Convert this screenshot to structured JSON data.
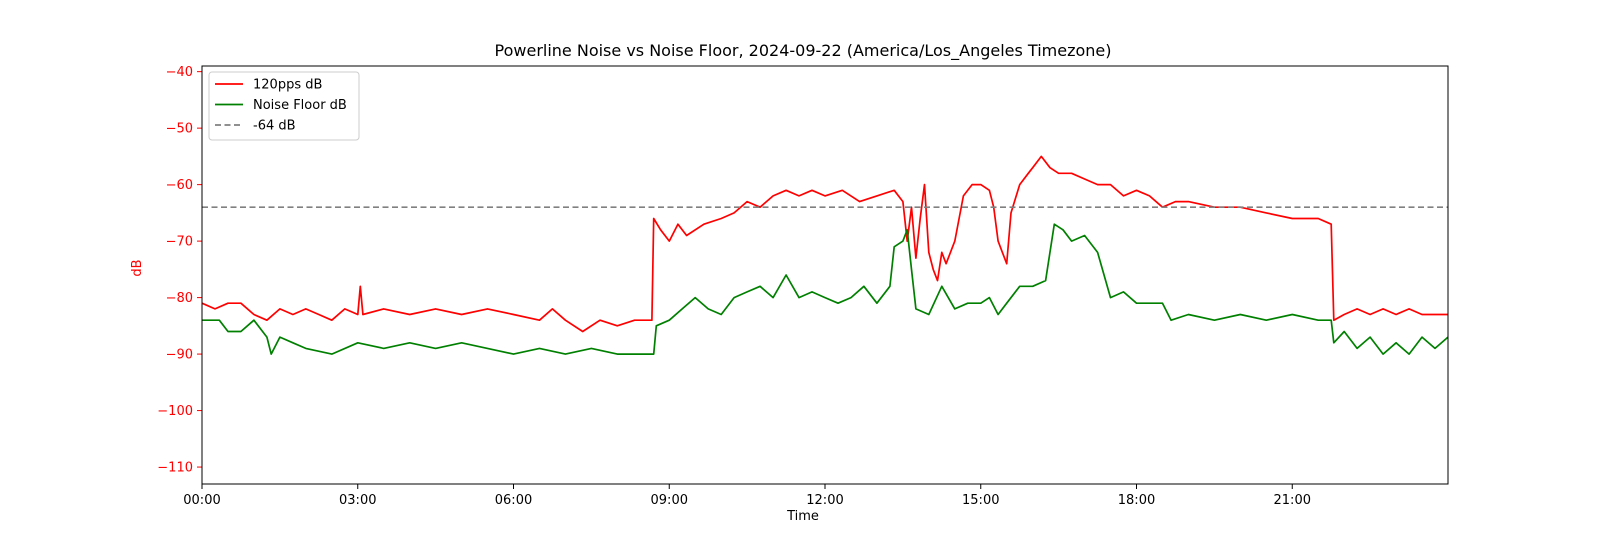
{
  "chart_data": {
    "type": "line",
    "title": "Powerline Noise vs Noise Floor, 2024-09-22 (America/Los_Angeles Timezone)",
    "xlabel": "Time",
    "ylabel": "dB",
    "xlim": [
      "00:00",
      "24:00"
    ],
    "ylim": [
      -113,
      -39
    ],
    "x_ticks": [
      "00:00",
      "03:00",
      "06:00",
      "09:00",
      "12:00",
      "15:00",
      "18:00",
      "21:00"
    ],
    "y_ticks": [
      -40,
      -50,
      -60,
      -70,
      -80,
      -90,
      -100,
      -110
    ],
    "grid": false,
    "legend_position": "upper-left",
    "series": [
      {
        "name": "120pps dB",
        "color": "#ff0000",
        "style": "solid",
        "points": [
          [
            "00:00",
            -81
          ],
          [
            "00:15",
            -82
          ],
          [
            "00:30",
            -81
          ],
          [
            "00:45",
            -81
          ],
          [
            "01:00",
            -83
          ],
          [
            "01:15",
            -84
          ],
          [
            "01:30",
            -82
          ],
          [
            "01:45",
            -83
          ],
          [
            "02:00",
            -82
          ],
          [
            "02:15",
            -83
          ],
          [
            "02:30",
            -84
          ],
          [
            "02:45",
            -82
          ],
          [
            "03:00",
            -83
          ],
          [
            "03:03",
            -78
          ],
          [
            "03:06",
            -83
          ],
          [
            "03:30",
            -82
          ],
          [
            "04:00",
            -83
          ],
          [
            "04:30",
            -82
          ],
          [
            "05:00",
            -83
          ],
          [
            "05:30",
            -82
          ],
          [
            "06:00",
            -83
          ],
          [
            "06:30",
            -84
          ],
          [
            "06:45",
            -82
          ],
          [
            "07:00",
            -84
          ],
          [
            "07:20",
            -86
          ],
          [
            "07:40",
            -84
          ],
          [
            "08:00",
            -85
          ],
          [
            "08:20",
            -84
          ],
          [
            "08:40",
            -84
          ],
          [
            "08:42",
            -66
          ],
          [
            "08:50",
            -68
          ],
          [
            "09:00",
            -70
          ],
          [
            "09:10",
            -67
          ],
          [
            "09:20",
            -69
          ],
          [
            "09:40",
            -67
          ],
          [
            "10:00",
            -66
          ],
          [
            "10:15",
            -65
          ],
          [
            "10:30",
            -63
          ],
          [
            "10:45",
            -64
          ],
          [
            "11:00",
            -62
          ],
          [
            "11:15",
            -61
          ],
          [
            "11:30",
            -62
          ],
          [
            "11:45",
            -61
          ],
          [
            "12:00",
            -62
          ],
          [
            "12:20",
            -61
          ],
          [
            "12:40",
            -63
          ],
          [
            "13:00",
            -62
          ],
          [
            "13:20",
            -61
          ],
          [
            "13:30",
            -63
          ],
          [
            "13:35",
            -70
          ],
          [
            "13:40",
            -64
          ],
          [
            "13:45",
            -73
          ],
          [
            "13:50",
            -66
          ],
          [
            "13:55",
            -60
          ],
          [
            "14:00",
            -72
          ],
          [
            "14:05",
            -75
          ],
          [
            "14:10",
            -77
          ],
          [
            "14:15",
            -72
          ],
          [
            "14:20",
            -74
          ],
          [
            "14:30",
            -70
          ],
          [
            "14:40",
            -62
          ],
          [
            "14:50",
            -60
          ],
          [
            "15:00",
            -60
          ],
          [
            "15:10",
            -61
          ],
          [
            "15:15",
            -64
          ],
          [
            "15:20",
            -70
          ],
          [
            "15:25",
            -72
          ],
          [
            "15:30",
            -74
          ],
          [
            "15:35",
            -65
          ],
          [
            "15:45",
            -60
          ],
          [
            "15:55",
            -58
          ],
          [
            "16:00",
            -57
          ],
          [
            "16:10",
            -55
          ],
          [
            "16:20",
            -57
          ],
          [
            "16:30",
            -58
          ],
          [
            "16:45",
            -58
          ],
          [
            "17:00",
            -59
          ],
          [
            "17:15",
            -60
          ],
          [
            "17:30",
            -60
          ],
          [
            "17:45",
            -62
          ],
          [
            "18:00",
            -61
          ],
          [
            "18:15",
            -62
          ],
          [
            "18:30",
            -64
          ],
          [
            "18:45",
            -63
          ],
          [
            "19:00",
            -63
          ],
          [
            "19:30",
            -64
          ],
          [
            "20:00",
            -64
          ],
          [
            "20:30",
            -65
          ],
          [
            "21:00",
            -66
          ],
          [
            "21:30",
            -66
          ],
          [
            "21:45",
            -67
          ],
          [
            "21:48",
            -84
          ],
          [
            "22:00",
            -83
          ],
          [
            "22:15",
            -82
          ],
          [
            "22:30",
            -83
          ],
          [
            "22:45",
            -82
          ],
          [
            "23:00",
            -83
          ],
          [
            "23:15",
            -82
          ],
          [
            "23:30",
            -83
          ],
          [
            "23:45",
            -83
          ],
          [
            "24:00",
            -83
          ]
        ]
      },
      {
        "name": "Noise Floor dB",
        "color": "#008000",
        "style": "solid",
        "points": [
          [
            "00:00",
            -84
          ],
          [
            "00:20",
            -84
          ],
          [
            "00:30",
            -86
          ],
          [
            "00:45",
            -86
          ],
          [
            "01:00",
            -84
          ],
          [
            "01:15",
            -87
          ],
          [
            "01:20",
            -90
          ],
          [
            "01:30",
            -87
          ],
          [
            "01:45",
            -88
          ],
          [
            "02:00",
            -89
          ],
          [
            "02:30",
            -90
          ],
          [
            "03:00",
            -88
          ],
          [
            "03:30",
            -89
          ],
          [
            "04:00",
            -88
          ],
          [
            "04:30",
            -89
          ],
          [
            "05:00",
            -88
          ],
          [
            "05:30",
            -89
          ],
          [
            "06:00",
            -90
          ],
          [
            "06:30",
            -89
          ],
          [
            "07:00",
            -90
          ],
          [
            "07:30",
            -89
          ],
          [
            "08:00",
            -90
          ],
          [
            "08:30",
            -90
          ],
          [
            "08:42",
            -90
          ],
          [
            "08:45",
            -85
          ],
          [
            "09:00",
            -84
          ],
          [
            "09:15",
            -82
          ],
          [
            "09:30",
            -80
          ],
          [
            "09:45",
            -82
          ],
          [
            "10:00",
            -83
          ],
          [
            "10:15",
            -80
          ],
          [
            "10:30",
            -79
          ],
          [
            "10:45",
            -78
          ],
          [
            "11:00",
            -80
          ],
          [
            "11:15",
            -76
          ],
          [
            "11:30",
            -80
          ],
          [
            "11:45",
            -79
          ],
          [
            "12:00",
            -80
          ],
          [
            "12:15",
            -81
          ],
          [
            "12:30",
            -80
          ],
          [
            "12:45",
            -78
          ],
          [
            "13:00",
            -81
          ],
          [
            "13:15",
            -78
          ],
          [
            "13:20",
            -71
          ],
          [
            "13:30",
            -70
          ],
          [
            "13:35",
            -68
          ],
          [
            "13:40",
            -75
          ],
          [
            "13:45",
            -82
          ],
          [
            "14:00",
            -83
          ],
          [
            "14:15",
            -78
          ],
          [
            "14:30",
            -82
          ],
          [
            "14:45",
            -81
          ],
          [
            "15:00",
            -81
          ],
          [
            "15:10",
            -80
          ],
          [
            "15:20",
            -83
          ],
          [
            "15:30",
            -81
          ],
          [
            "15:45",
            -78
          ],
          [
            "16:00",
            -78
          ],
          [
            "16:15",
            -77
          ],
          [
            "16:25",
            -67
          ],
          [
            "16:35",
            -68
          ],
          [
            "16:45",
            -70
          ],
          [
            "17:00",
            -69
          ],
          [
            "17:15",
            -72
          ],
          [
            "17:30",
            -80
          ],
          [
            "17:45",
            -79
          ],
          [
            "18:00",
            -81
          ],
          [
            "18:15",
            -81
          ],
          [
            "18:30",
            -81
          ],
          [
            "18:40",
            -84
          ],
          [
            "19:00",
            -83
          ],
          [
            "19:30",
            -84
          ],
          [
            "20:00",
            -83
          ],
          [
            "20:30",
            -84
          ],
          [
            "21:00",
            -83
          ],
          [
            "21:30",
            -84
          ],
          [
            "21:45",
            -84
          ],
          [
            "21:48",
            -88
          ],
          [
            "22:00",
            -86
          ],
          [
            "22:15",
            -89
          ],
          [
            "22:30",
            -87
          ],
          [
            "22:45",
            -90
          ],
          [
            "23:00",
            -88
          ],
          [
            "23:15",
            -90
          ],
          [
            "23:30",
            -87
          ],
          [
            "23:45",
            -89
          ],
          [
            "24:00",
            -87
          ]
        ]
      },
      {
        "name": "-64 dB",
        "color": "#808080",
        "style": "dashed",
        "points": [
          [
            "00:00",
            -64
          ],
          [
            "24:00",
            -64
          ]
        ]
      }
    ]
  }
}
